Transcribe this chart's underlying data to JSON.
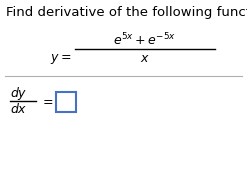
{
  "title": "Find derivative of the following function.",
  "title_fontsize": 9.5,
  "title_color": "#000000",
  "background_color": "#ffffff",
  "line_color": "#b0b0b0",
  "box_color": "#4472c4",
  "figsize": [
    2.47,
    1.71
  ],
  "dpi": 100,
  "formula_color": "#000000",
  "text_fontsize": 9,
  "math_fontsize": 9
}
